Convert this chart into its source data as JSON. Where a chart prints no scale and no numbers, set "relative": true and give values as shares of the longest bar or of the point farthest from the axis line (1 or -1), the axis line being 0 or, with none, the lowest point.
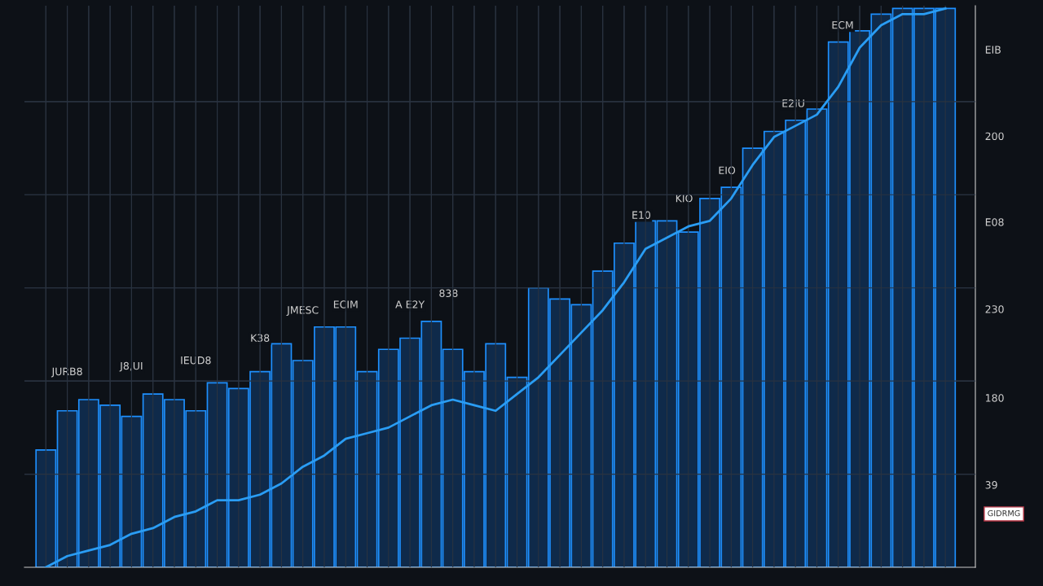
{
  "chart_data": [
    {
      "type": "bar",
      "relative": true,
      "grid": true,
      "color": "#0f2a4a",
      "categories": [
        null,
        null,
        null,
        null,
        null,
        null,
        null,
        null,
        null,
        null,
        null,
        null,
        null,
        null,
        null,
        null,
        null,
        null,
        null,
        null,
        null,
        null,
        null,
        null,
        null,
        null,
        null,
        null,
        null,
        null,
        null,
        null,
        null,
        null,
        null,
        null,
        null,
        null,
        null,
        null,
        null,
        null,
        null
      ],
      "values": [
        0.21,
        0.28,
        0.3,
        0.29,
        0.27,
        0.31,
        0.3,
        0.28,
        0.33,
        0.32,
        0.35,
        0.4,
        0.37,
        0.43,
        0.43,
        0.35,
        0.39,
        0.41,
        0.44,
        0.39,
        0.35,
        0.4,
        0.34,
        0.5,
        0.48,
        0.47,
        0.53,
        0.58,
        0.62,
        0.62,
        0.6,
        0.66,
        0.68,
        0.75,
        0.78,
        0.8,
        0.82,
        0.94,
        0.96,
        0.99,
        1.0,
        1.0,
        1.0
      ],
      "annotations": [
        "JURB8",
        "J8,UI",
        "IEUD8",
        "K38",
        "JMESC",
        "ECIM",
        "A E2Y",
        "838",
        "E10",
        "KIO",
        "EIO",
        "E2IU",
        "ECM",
        "EIB",
        "200",
        "E08",
        "230",
        "180",
        "39",
        "GIDRMG"
      ]
    },
    {
      "type": "line",
      "relative": true,
      "grid": true,
      "color": "#2a9df4",
      "categories": [
        null,
        null,
        null,
        null,
        null,
        null,
        null,
        null,
        null,
        null,
        null,
        null,
        null,
        null,
        null,
        null,
        null,
        null,
        null,
        null,
        null,
        null,
        null,
        null,
        null,
        null,
        null,
        null,
        null,
        null,
        null,
        null,
        null,
        null,
        null,
        null,
        null,
        null,
        null,
        null,
        null,
        null,
        null
      ],
      "values": [
        0,
        0.02,
        0.03,
        0.04,
        0.06,
        0.07,
        0.09,
        0.1,
        0.12,
        0.12,
        0.13,
        0.15,
        0.18,
        0.2,
        0.23,
        0.24,
        0.25,
        0.27,
        0.29,
        0.3,
        0.29,
        0.28,
        0.31,
        0.34,
        0.38,
        0.42,
        0.46,
        0.51,
        0.57,
        0.59,
        0.61,
        0.62,
        0.66,
        0.72,
        0.77,
        0.79,
        0.81,
        0.86,
        0.93,
        0.97,
        0.99,
        0.99,
        1.0
      ]
    }
  ]
}
